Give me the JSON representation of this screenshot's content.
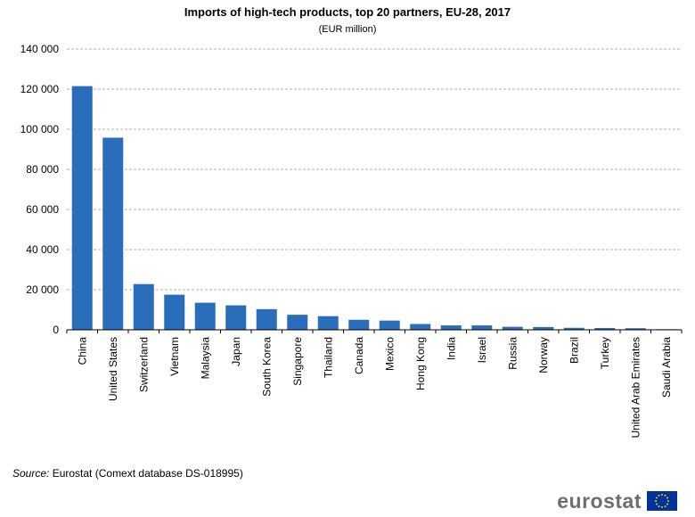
{
  "chart_data": {
    "type": "bar",
    "title": "Imports of high-tech products, top 20 partners, EU-28, 2017",
    "subtitle": "(EUR million)",
    "categories": [
      "China",
      "United States",
      "Switzerland",
      "Vietnam",
      "Malaysia",
      "Japan",
      "South Korea",
      "Singapore",
      "Thailand",
      "Canada",
      "Mexico",
      "Hong Kong",
      "India",
      "Israel",
      "Russia",
      "Norway",
      "Brazil",
      "Turkey",
      "United Arab Emirates",
      "Saudi Arabia"
    ],
    "values": [
      121500,
      95800,
      22800,
      17500,
      13500,
      12200,
      10300,
      7500,
      6800,
      5000,
      4600,
      2900,
      2200,
      2200,
      1500,
      1400,
      1000,
      900,
      800,
      300
    ],
    "ylim": [
      0,
      140000
    ],
    "yticks": [
      0,
      20000,
      40000,
      60000,
      80000,
      100000,
      120000,
      140000
    ],
    "ytick_labels": [
      "0",
      "20 000",
      "40 000",
      "60 000",
      "80 000",
      "100 000",
      "120 000",
      "140 000"
    ],
    "xlabel": "",
    "ylabel": "",
    "grid": true,
    "bar_color": "#2a6ebb"
  },
  "source": {
    "label": "Source:",
    "text": "Eurostat (Comext database DS-018995)"
  },
  "logo": {
    "text": "eurostat",
    "icon": "eu-flag-icon"
  }
}
